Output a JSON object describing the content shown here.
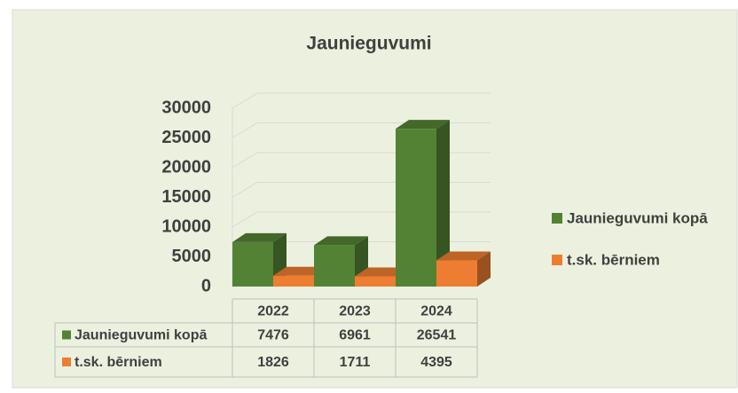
{
  "chart_data": {
    "type": "bar3d",
    "title": "Jaunieguvumi",
    "categories": [
      "2022",
      "2023",
      "2024"
    ],
    "series": [
      {
        "name": "Jaunieguvumi kopā",
        "color": "#548235",
        "values": [
          7476,
          6961,
          26541
        ]
      },
      {
        "name": "t.sk. bērniem",
        "color": "#ed7d31",
        "values": [
          1826,
          1711,
          4395
        ]
      }
    ],
    "ylim": [
      0,
      30000
    ],
    "yticks": [
      0,
      5000,
      10000,
      15000,
      20000,
      25000,
      30000
    ],
    "grid": true,
    "legend": "right",
    "data_table": true
  }
}
